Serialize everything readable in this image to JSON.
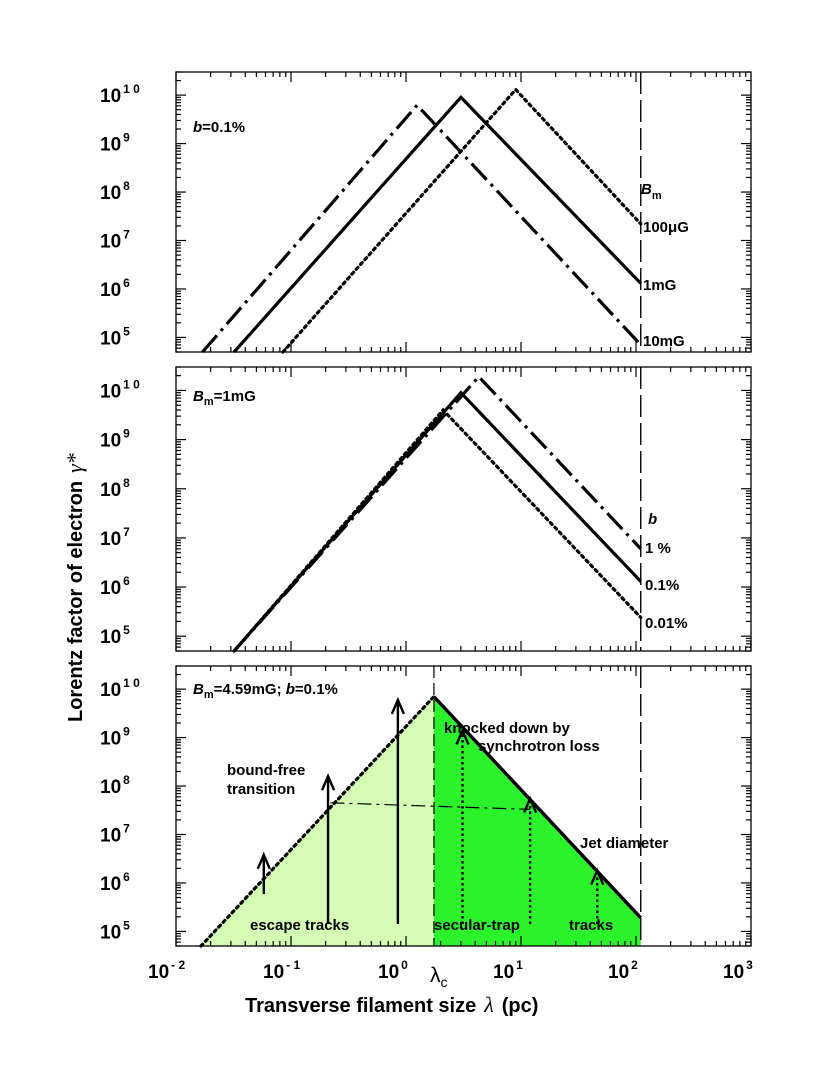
{
  "figure": {
    "xlabel_prefix": "Transverse filament size",
    "xlabel_symbol": "λ",
    "xlabel_unit": "(pc)",
    "ylabel_prefix": "Lorentz factor of electron",
    "ylabel_symbol": "γ*",
    "x_ticks": [
      {
        "base": "10",
        "exp": "- 2"
      },
      {
        "base": "10",
        "exp": "- 1"
      },
      {
        "base": "10",
        "exp": "0"
      },
      {
        "base": "10",
        "exp": "1"
      },
      {
        "base": "10",
        "exp": "2"
      },
      {
        "base": "10",
        "exp": "3"
      }
    ],
    "y_ticks": [
      {
        "base": "10",
        "exp": "5"
      },
      {
        "base": "10",
        "exp": "6"
      },
      {
        "base": "10",
        "exp": "7"
      },
      {
        "base": "10",
        "exp": "8"
      },
      {
        "base": "10",
        "exp": "9"
      },
      {
        "base": "10",
        "exp": "1 0"
      }
    ],
    "lambda_c_label": "λ",
    "lambda_c_sub": "c"
  },
  "chart_data": [
    {
      "type": "line",
      "panel": "top",
      "xscale": "log",
      "yscale": "log",
      "xlim": [
        0.01,
        1000
      ],
      "ylim": [
        50000,
        30000000000
      ],
      "label_var": "b",
      "label_value": "=0.1%",
      "legend_title_var": "B",
      "legend_title_sub": "m",
      "jet_diameter_x": 110,
      "series": [
        {
          "name": "100μG",
          "style": "dotted",
          "x": [
            0.085,
            9.0,
            110
          ],
          "y": [
            50000,
            13000000000,
            22000000
          ]
        },
        {
          "name": "1mG",
          "style": "solid",
          "x": [
            0.032,
            3.0,
            110
          ],
          "y": [
            50000,
            9000000000,
            1300000
          ]
        },
        {
          "name": "10mG",
          "style": "dashdot",
          "x": [
            0.017,
            1.25,
            110
          ],
          "y": [
            50000,
            6200000000,
            70000
          ]
        }
      ]
    },
    {
      "type": "line",
      "panel": "middle",
      "xscale": "log",
      "yscale": "log",
      "xlim": [
        0.01,
        1000
      ],
      "ylim": [
        50000,
        30000000000
      ],
      "label_var": "B",
      "label_sub": "m",
      "label_value": "=1mG",
      "legend_title_var": "b",
      "jet_diameter_x": 110,
      "series": [
        {
          "name": "1 %",
          "style": "dashdot",
          "x": [
            0.032,
            4.3,
            110
          ],
          "y": [
            50000,
            19000000000,
            6000000
          ]
        },
        {
          "name": "0.1%",
          "style": "solid",
          "x": [
            0.032,
            3.0,
            110
          ],
          "y": [
            50000,
            9000000000,
            1300000
          ]
        },
        {
          "name": "0.01%",
          "style": "dotted",
          "x": [
            0.032,
            2.1,
            110
          ],
          "y": [
            50000,
            4000000000,
            240000
          ]
        }
      ]
    },
    {
      "type": "area",
      "panel": "bottom",
      "xscale": "log",
      "yscale": "log",
      "xlim": [
        0.01,
        1000
      ],
      "ylim": [
        50000,
        30000000000
      ],
      "label_var": "B",
      "label_sub": "m",
      "label_value": "=4.59mG; ",
      "label_var2": "b",
      "label_value2": "=0.1%",
      "lambda_c": 1.75,
      "jet_diameter_x": 110,
      "colors": {
        "escape_region": "#d4fcb4",
        "trap_region": "#2bf22b"
      },
      "rising_branch": {
        "style": "dotted",
        "x": [
          0.0165,
          1.75
        ],
        "y": [
          50000,
          7000000000
        ]
      },
      "falling_branch": {
        "style": "solid",
        "x": [
          1.75,
          110
        ],
        "y": [
          7000000000,
          190000
        ]
      },
      "bound_free_line": {
        "style": "dashdot",
        "x": [
          0.22,
          12
        ],
        "y": [
          45000000,
          33000000
        ]
      },
      "escape_tracks": [
        {
          "x": 0.058,
          "y_from": 50000,
          "y_to": 3800000
        },
        {
          "x": 0.21,
          "y_from": 50000,
          "y_to": 160000000
        },
        {
          "x": 0.85,
          "y_from": 50000,
          "y_to": 6000000000
        }
      ],
      "trap_tracks": [
        {
          "x": 3.1,
          "y_from": 50000,
          "y_to": 1400000000
        },
        {
          "x": 12,
          "y_from": 50000,
          "y_to": 55000000
        },
        {
          "x": 46,
          "y_from": 50000,
          "y_to": 1800000
        }
      ],
      "annotations": {
        "knocked_1": "knocked down by",
        "knocked_2": "synchrotron loss",
        "bound_1": "bound-free",
        "bound_2": "transition",
        "jet": "Jet diameter",
        "escape": "escape tracks",
        "secular": "secular-trap",
        "tracks": "tracks"
      }
    }
  ]
}
